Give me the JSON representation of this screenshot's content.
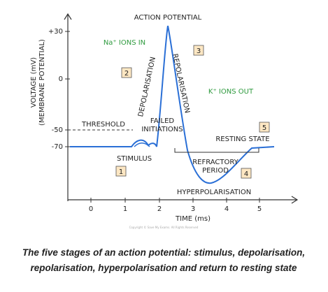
{
  "y_ticks": [
    "+30",
    "0",
    "-50",
    "-70"
  ],
  "y_label": [
    "VOLTAGE (mV)",
    "(MEMBRANE POTENTIAL)"
  ],
  "x_ticks": [
    "0",
    "1",
    "2",
    "3",
    "4",
    "5"
  ],
  "x_label": "TIME (ms)",
  "copyright": "Copyright © Save My Exams. All Rights Reserved",
  "annotations": {
    "action_potential": "ACTION POTENTIAL",
    "na_ions": "Na⁺ IONS IN",
    "k_ions": "K⁺ IONS OUT",
    "depolarisation": "DEPOLARISATION",
    "repolarisation": "REPOLARISATION",
    "threshold": "THRESHOLD",
    "failed": [
      "FAILED",
      "INITIATIONS"
    ],
    "stimulus": "STIMULUS",
    "resting_state": "RESTING STATE",
    "refractory": [
      "REFRACTORY",
      "PERIOD"
    ],
    "hyperpolarisation": "HYPERPOLARISATION"
  },
  "stages": [
    "1",
    "2",
    "3",
    "4",
    "5"
  ],
  "caption": [
    "The five stages of an action potential: stimulus, depolarisation,",
    "repolarisation, hyperpolarisation and return to resting state"
  ]
}
